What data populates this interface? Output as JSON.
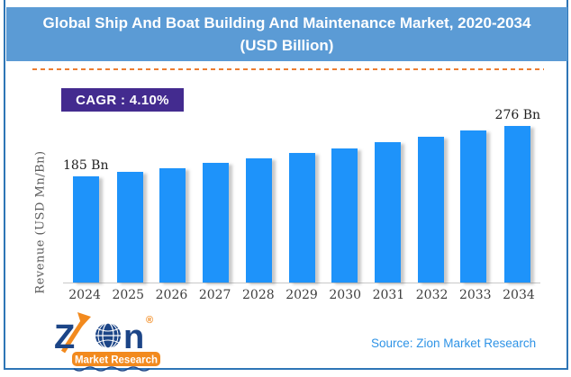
{
  "header": {
    "title_line1": "Global Ship And Boat Building And Maintenance Market, 2020-2034",
    "title_line2": "(USD Billion)"
  },
  "cagr": {
    "label": "CAGR : 4.10%",
    "value_percent": 4.1
  },
  "chart_data": {
    "type": "bar",
    "title": "Global Ship And Boat Building And Maintenance Market, 2020-2034 (USD Billion)",
    "categories": [
      "2024",
      "2025",
      "2026",
      "2027",
      "2028",
      "2029",
      "2030",
      "2031",
      "2032",
      "2033",
      "2034"
    ],
    "values": [
      185,
      193,
      200,
      209,
      217,
      226,
      235,
      245,
      255,
      266,
      276
    ],
    "unit": "USD Billion",
    "ylabel": "Revenue (USD Mn/Bn)",
    "xlabel": "",
    "ylim": [
      0,
      305
    ],
    "grid": false,
    "legend": false,
    "bar_color": "#1E93FA",
    "value_labels": {
      "0": "185 Bn",
      "10": "276 Bn"
    },
    "cagr_percent": 4.1
  },
  "footer": {
    "source_label": "Source: Zion Market Research",
    "logo": {
      "brand": "Z",
      "brand_end": "n",
      "registered_mark": "®",
      "subtitle": "Market Research"
    }
  },
  "colors": {
    "title_bar_bg": "#5B9BD5",
    "title_text": "#FFFFFF",
    "dashed_divider": "#ED7D31",
    "cagr_badge_bg": "#432B8F",
    "bar": "#1E93FA",
    "frame_border": "#2E75B6",
    "source_text": "#2E93E6",
    "logo_navy": "#1C4587",
    "logo_orange": "#F28A1E"
  }
}
